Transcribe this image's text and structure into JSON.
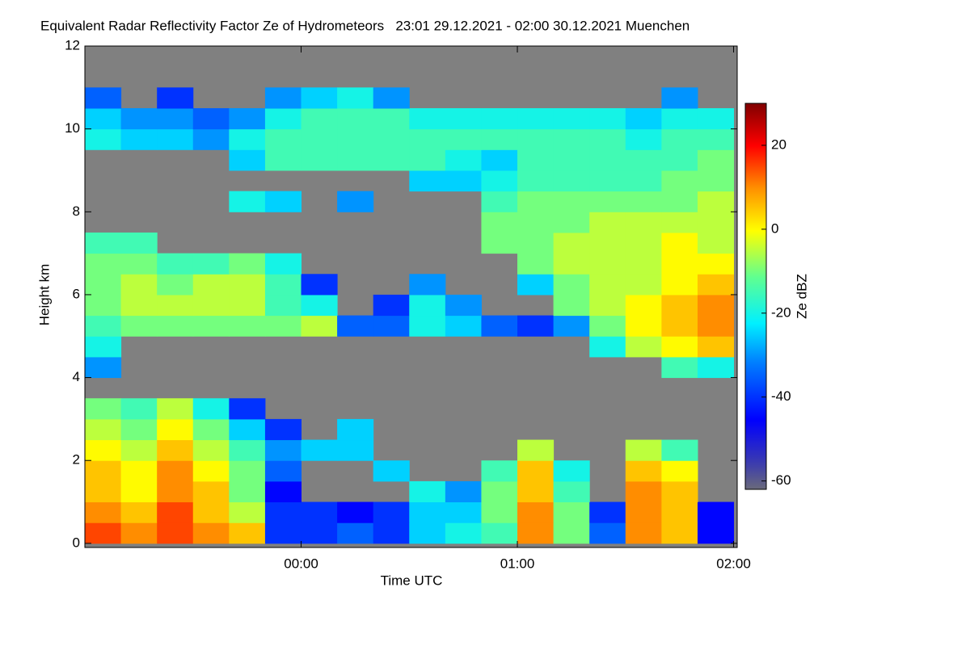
{
  "chart_data": {
    "type": "heatmap",
    "title": "Equivalent Radar Reflectivity Factor Ze of Hydrometeors   23:01 29.12.2021 - 02:00 30.12.2021 Muenchen",
    "xlabel": "Time UTC",
    "ylabel": "Height km",
    "x": [
      -60,
      -50,
      -40,
      -30,
      -20,
      -10,
      0,
      10,
      20,
      30,
      40,
      50,
      60,
      70,
      80,
      90,
      100,
      110,
      120
    ],
    "y": [
      0,
      0.5,
      1,
      1.5,
      2,
      2.5,
      3,
      3.5,
      4,
      4.5,
      5,
      5.5,
      6,
      6.5,
      7,
      7.5,
      8,
      8.5,
      9,
      9.5,
      10,
      10.5,
      11,
      11.5,
      12
    ],
    "values": [
      [
        15,
        10,
        15,
        10,
        5,
        -40,
        -40,
        -35,
        -40,
        -25,
        -20,
        -15,
        10,
        -10,
        -35,
        10,
        5,
        -45
      ],
      [
        10,
        5,
        15,
        5,
        -5,
        -40,
        -40,
        -45,
        -40,
        -25,
        -25,
        -10,
        10,
        -10,
        -40,
        10,
        5,
        -45
      ],
      [
        5,
        0,
        10,
        5,
        -10,
        -45,
        null,
        null,
        null,
        -20,
        -30,
        -10,
        5,
        -15,
        null,
        10,
        5,
        null
      ],
      [
        5,
        0,
        10,
        0,
        -10,
        -35,
        null,
        null,
        -25,
        null,
        null,
        -15,
        5,
        -20,
        null,
        5,
        0,
        null
      ],
      [
        0,
        -5,
        5,
        -5,
        -15,
        -30,
        -25,
        -25,
        null,
        null,
        null,
        null,
        -5,
        null,
        null,
        -5,
        -15,
        null
      ],
      [
        -5,
        -10,
        0,
        -10,
        -25,
        -40,
        null,
        -25,
        null,
        null,
        null,
        null,
        null,
        null,
        null,
        null,
        null,
        null
      ],
      [
        -10,
        -15,
        -5,
        -20,
        -40,
        null,
        null,
        null,
        null,
        null,
        null,
        null,
        null,
        null,
        null,
        null,
        null,
        null
      ],
      [
        null,
        null,
        null,
        null,
        null,
        null,
        null,
        null,
        null,
        null,
        null,
        null,
        null,
        null,
        null,
        null,
        null,
        null
      ],
      [
        -30,
        null,
        null,
        null,
        null,
        null,
        null,
        null,
        null,
        null,
        null,
        null,
        null,
        null,
        null,
        null,
        -15,
        -20
      ],
      [
        -20,
        null,
        null,
        null,
        null,
        null,
        null,
        null,
        null,
        null,
        null,
        null,
        null,
        null,
        -20,
        -5,
        0,
        5
      ],
      [
        -15,
        -10,
        -10,
        -10,
        -10,
        -10,
        -5,
        -35,
        -35,
        -20,
        -25,
        -35,
        -40,
        -30,
        -10,
        0,
        5,
        10
      ],
      [
        -10,
        -5,
        -5,
        -5,
        -5,
        -15,
        -20,
        null,
        -40,
        -20,
        -30,
        null,
        null,
        -10,
        -5,
        0,
        5,
        10
      ],
      [
        -10,
        -5,
        -10,
        -5,
        -5,
        -15,
        -40,
        null,
        null,
        -30,
        null,
        null,
        -25,
        -10,
        -5,
        -5,
        0,
        5
      ],
      [
        -10,
        -10,
        -15,
        -15,
        -10,
        -20,
        null,
        null,
        null,
        null,
        null,
        null,
        -10,
        -5,
        -5,
        -5,
        0,
        0
      ],
      [
        -15,
        -15,
        null,
        null,
        null,
        null,
        null,
        null,
        null,
        null,
        null,
        -10,
        -10,
        -5,
        -5,
        -5,
        0,
        -5
      ],
      [
        null,
        null,
        null,
        null,
        null,
        null,
        null,
        null,
        null,
        null,
        null,
        -10,
        -10,
        -10,
        -5,
        -5,
        -5,
        -5
      ],
      [
        null,
        null,
        null,
        null,
        -20,
        -25,
        null,
        -30,
        null,
        null,
        null,
        -15,
        -10,
        -10,
        -10,
        -10,
        -10,
        -5
      ],
      [
        null,
        null,
        null,
        null,
        null,
        null,
        null,
        null,
        null,
        -25,
        -25,
        -20,
        -15,
        -15,
        -15,
        -15,
        -10,
        -10
      ],
      [
        null,
        null,
        null,
        null,
        -25,
        -15,
        -15,
        -15,
        -15,
        -15,
        -20,
        -25,
        -15,
        -15,
        -15,
        -15,
        -15,
        -10
      ],
      [
        -20,
        -25,
        -25,
        -30,
        -20,
        -15,
        -15,
        -15,
        -15,
        -15,
        -15,
        -15,
        -15,
        -15,
        -15,
        -20,
        -15,
        -15
      ],
      [
        -25,
        -30,
        -30,
        -35,
        -30,
        -20,
        -15,
        -15,
        -15,
        -20,
        -20,
        -20,
        -20,
        -20,
        -20,
        -25,
        -20,
        -20
      ],
      [
        -35,
        null,
        -40,
        null,
        null,
        -30,
        -25,
        -20,
        -30,
        null,
        null,
        null,
        null,
        null,
        null,
        null,
        -30,
        null
      ],
      [
        null,
        null,
        null,
        null,
        null,
        null,
        null,
        null,
        null,
        null,
        null,
        null,
        null,
        null,
        null,
        null,
        null,
        null
      ],
      [
        null,
        null,
        null,
        null,
        null,
        null,
        null,
        null,
        null,
        null,
        null,
        null,
        null,
        null,
        null,
        null,
        null,
        null
      ]
    ],
    "xlim": [
      -60,
      121
    ],
    "ylim": [
      -0.1,
      12
    ],
    "xticks": [
      {
        "value": 0,
        "label": "00:00"
      },
      {
        "value": 60,
        "label": "01:00"
      },
      {
        "value": 120,
        "label": "02:00"
      }
    ],
    "yticks": [
      0,
      2,
      4,
      6,
      8,
      10,
      12
    ],
    "background": "#808080",
    "colorbar": {
      "label": "Ze dBZ",
      "lim": [
        -62,
        30
      ],
      "ticks": [
        20,
        0,
        -20,
        -40,
        -60
      ]
    }
  }
}
